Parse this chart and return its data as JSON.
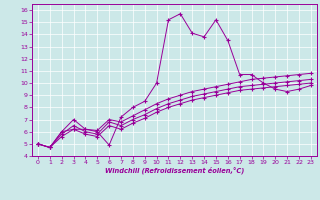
{
  "xlabel": "Windchill (Refroidissement éolien,°C)",
  "bg_color": "#cce8e8",
  "line_color": "#990099",
  "xlim": [
    -0.5,
    23.5
  ],
  "ylim": [
    4,
    16.5
  ],
  "xticks": [
    0,
    1,
    2,
    3,
    4,
    5,
    6,
    7,
    8,
    9,
    10,
    11,
    12,
    13,
    14,
    15,
    16,
    17,
    18,
    19,
    20,
    21,
    22,
    23
  ],
  "yticks": [
    4,
    5,
    6,
    7,
    8,
    9,
    10,
    11,
    12,
    13,
    14,
    15,
    16
  ],
  "lines": [
    {
      "x": [
        0,
        1,
        2,
        3,
        4,
        5,
        6,
        7,
        8,
        9,
        10,
        11,
        12,
        13,
        14,
        15,
        16,
        17,
        18,
        19,
        20,
        21,
        22,
        23
      ],
      "y": [
        5.0,
        4.7,
        6.0,
        6.2,
        6.2,
        6.0,
        4.9,
        7.2,
        8.0,
        8.5,
        10.0,
        15.2,
        15.7,
        14.1,
        13.8,
        15.2,
        13.5,
        10.7,
        10.7,
        10.0,
        9.5,
        9.3,
        9.5,
        9.8
      ]
    },
    {
      "x": [
        0,
        1,
        2,
        3,
        4,
        5,
        6,
        7,
        8,
        9,
        10,
        11,
        12,
        13,
        14,
        15,
        16,
        17,
        18,
        19,
        20,
        21,
        22,
        23
      ],
      "y": [
        5.0,
        4.7,
        6.0,
        7.0,
        6.2,
        6.1,
        7.0,
        6.8,
        7.3,
        7.8,
        8.3,
        8.7,
        9.0,
        9.3,
        9.5,
        9.7,
        9.9,
        10.1,
        10.3,
        10.4,
        10.5,
        10.6,
        10.7,
        10.8
      ]
    },
    {
      "x": [
        0,
        1,
        2,
        3,
        4,
        5,
        6,
        7,
        8,
        9,
        10,
        11,
        12,
        13,
        14,
        15,
        16,
        17,
        18,
        19,
        20,
        21,
        22,
        23
      ],
      "y": [
        5.0,
        4.7,
        5.8,
        6.5,
        6.0,
        5.8,
        6.8,
        6.5,
        7.0,
        7.4,
        7.9,
        8.3,
        8.6,
        8.9,
        9.1,
        9.3,
        9.5,
        9.7,
        9.8,
        9.9,
        10.0,
        10.1,
        10.2,
        10.3
      ]
    },
    {
      "x": [
        0,
        1,
        2,
        3,
        4,
        5,
        6,
        7,
        8,
        9,
        10,
        11,
        12,
        13,
        14,
        15,
        16,
        17,
        18,
        19,
        20,
        21,
        22,
        23
      ],
      "y": [
        5.0,
        4.7,
        5.6,
        6.2,
        5.8,
        5.6,
        6.5,
        6.2,
        6.7,
        7.1,
        7.6,
        8.0,
        8.3,
        8.6,
        8.8,
        9.0,
        9.2,
        9.4,
        9.5,
        9.6,
        9.7,
        9.8,
        9.9,
        10.0
      ]
    }
  ]
}
